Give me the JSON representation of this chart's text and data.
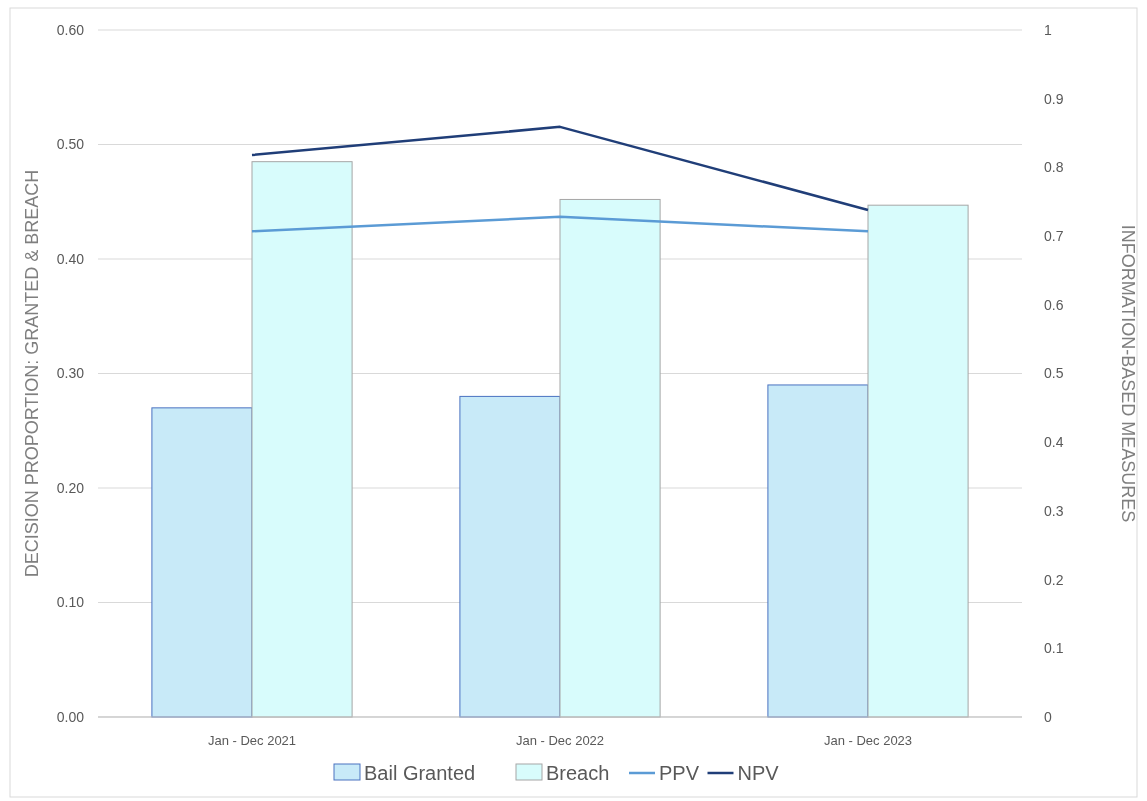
{
  "chart_data": {
    "type": "bar",
    "categories": [
      "Jan - Dec 2021",
      "Jan - Dec 2022",
      "Jan - Dec 2023"
    ],
    "series": [
      {
        "name": "Bail Granted",
        "color": "#c8eaf8",
        "values": [
          0.27,
          0.28,
          0.29
        ]
      },
      {
        "name": "Breach",
        "color": "#d8fcfc",
        "values": [
          0.485,
          0.452,
          0.447
        ]
      },
      {
        "name": "PPV",
        "type": "line",
        "axis": "y2",
        "color": "#5b9bd5",
        "values": [
          0.707,
          0.728,
          0.707
        ]
      },
      {
        "name": "NPV",
        "type": "line",
        "axis": "y2",
        "color": "#203e78",
        "values": [
          0.818,
          0.859,
          0.738
        ]
      }
    ],
    "ylabel": "DECISION PROPORTION: GRANTED & BREACH",
    "y2label": "INFORMATION-BASED MEASURES",
    "ylim": [
      0,
      0.6
    ],
    "yticks": [
      {
        "value": 0,
        "label": "0.00"
      },
      {
        "value": 0.1,
        "label": "0.10"
      },
      {
        "value": 0.2,
        "label": "0.20"
      },
      {
        "value": 0.3,
        "label": "0.30"
      },
      {
        "value": 0.4,
        "label": "0.40"
      },
      {
        "value": 0.5,
        "label": "0.50"
      },
      {
        "value": 0.6,
        "label": "0.60"
      }
    ],
    "y2lim": [
      0,
      1
    ],
    "y2ticks": [
      0,
      0.1,
      0.2,
      0.3,
      0.4,
      0.5,
      0.6,
      0.7,
      0.8,
      0.9,
      1
    ],
    "grid": "y",
    "legend": "bottom"
  }
}
